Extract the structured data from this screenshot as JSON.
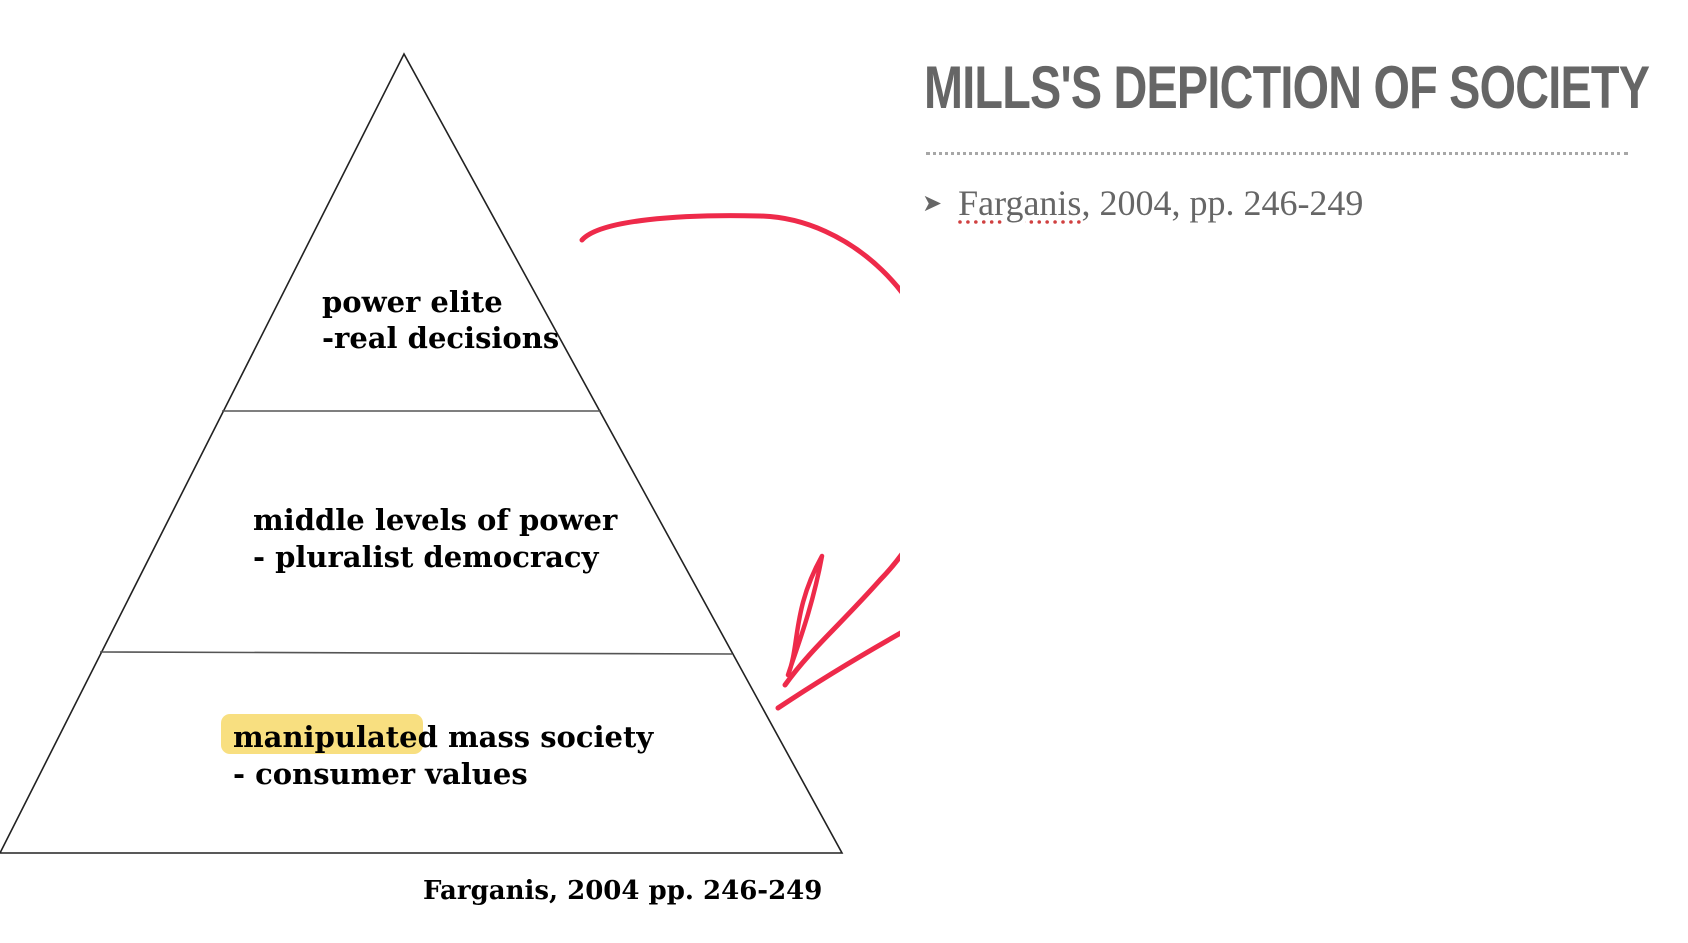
{
  "slide": {
    "title": "MILLS'S DEPICTION OF SOCIETY",
    "bullets": [
      {
        "author": "Farganis",
        "rest": ", 2004, pp. 246-249"
      }
    ]
  },
  "diagram": {
    "tiers": [
      {
        "line1": "power elite",
        "line2": "-real decisions"
      },
      {
        "line1": "middle levels of power",
        "line2": "- pluralist democracy"
      },
      {
        "highlight": "manipulated",
        "line1_rest": " mass society",
        "line2": "- consumer values"
      }
    ],
    "source": "Farganis, 2004 pp. 246-249"
  },
  "colors": {
    "title": "#666666",
    "rule": "#a7a7a7",
    "arrow": "#ee2a4a",
    "highlight": "#f7d96a",
    "outline": "#222222"
  },
  "icons": {
    "bullet": "arrowhead-bullet-icon",
    "annotation": "curved-arrow-icon"
  }
}
